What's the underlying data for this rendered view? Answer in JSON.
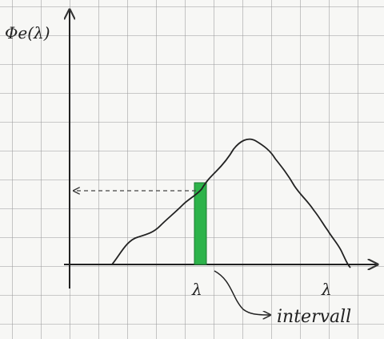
{
  "y_axis_label": "Φe(λ)",
  "x_marker_label": "λ",
  "x_axis_end_label": "λ",
  "annotation": "intervall"
}
